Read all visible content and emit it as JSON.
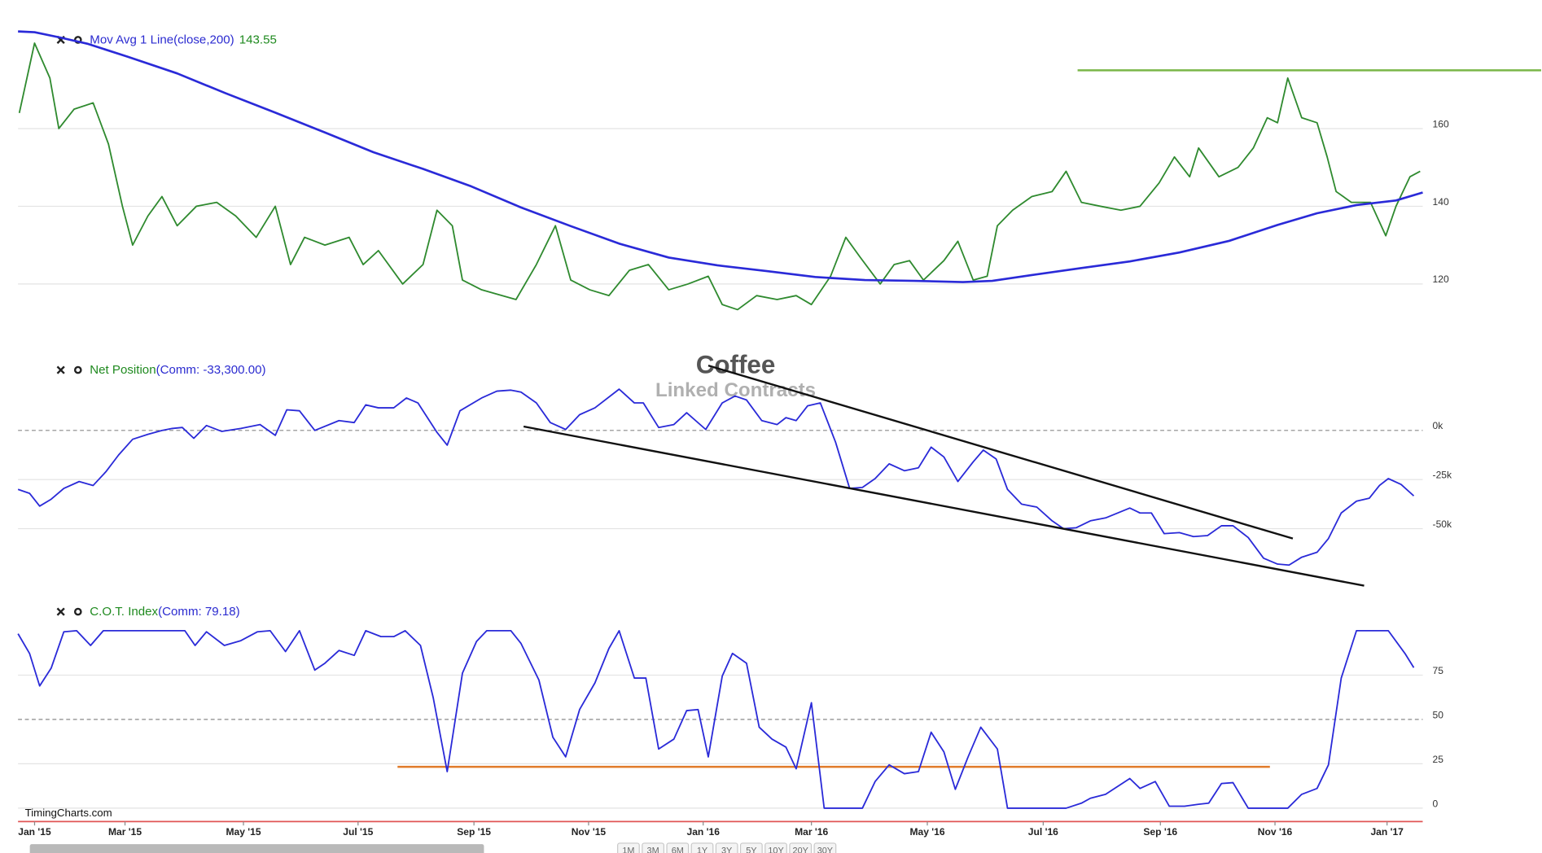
{
  "chart_data": [
    {
      "type": "line",
      "label": "Mov Avg 1 Line(close,200)",
      "label_color": "#2b2bd0",
      "label_value": 143.55,
      "label_value_color": "#1f8a1f",
      "xlim": [
        -1.3,
        109.0
      ],
      "ylim": [
        110,
        185
      ],
      "yticks": [
        120,
        140,
        160
      ],
      "grid": true,
      "series": [
        {
          "color": "#2f8a2f",
          "x": [
            -1.2,
            0,
            1.2,
            1.9,
            3.1,
            4.6,
            5.8,
            6.9,
            7.7,
            8.9,
            10.0,
            11.2,
            12.7,
            14.3,
            15.8,
            17.4,
            18.9,
            20.1,
            21.2,
            22.8,
            24.7,
            25.8,
            27.0,
            28.9,
            30.5,
            31.6,
            32.8,
            33.6,
            35.1,
            36.7,
            37.8,
            39.4,
            40.9,
            42.1,
            43.6,
            45.1,
            46.7,
            48.2,
            49.8,
            51.3,
            52.9,
            54.0,
            55.2,
            56.7,
            58.3,
            59.8,
            61.0,
            62.5,
            63.7,
            64.8,
            66.4,
            67.5,
            68.7,
            69.8,
            71.4,
            72.5,
            73.7,
            74.8,
            75.6,
            76.8,
            78.3,
            79.9,
            81.0,
            82.2,
            83.7,
            85.3,
            86.8,
            88.3,
            89.5,
            90.7,
            91.4,
            93.0,
            94.5,
            95.7,
            96.8,
            97.6,
            98.4,
            99.5,
            100.7,
            101.5,
            102.2,
            103.4,
            104.9,
            106.1,
            106.9,
            108.0,
            108.8
          ],
          "values": [
            164,
            182,
            173,
            160,
            165,
            166.6,
            156,
            140,
            130,
            137.5,
            142.5,
            135,
            140,
            141,
            137.5,
            132,
            140,
            125,
            132,
            130,
            132,
            125,
            128.6,
            120,
            125,
            139,
            135,
            121,
            118.5,
            117,
            116,
            125,
            135,
            121,
            118.5,
            117,
            123.5,
            125,
            118.5,
            120,
            122,
            114.7,
            113.4,
            117,
            116,
            117,
            114.7,
            122,
            132,
            127,
            120,
            125,
            126,
            121,
            126,
            131,
            121,
            122,
            135,
            139,
            142.5,
            143.8,
            149,
            141,
            140,
            139,
            140,
            146,
            152.7,
            147.6,
            155,
            147.6,
            150,
            155,
            162.8,
            161.5,
            173,
            162.8,
            161.5,
            152.7,
            143.8,
            141,
            141,
            132.4,
            140,
            147.6,
            149
          ]
        },
        {
          "name": "Mov Avg 1 Line(close,200)",
          "color": "#2a2ad8",
          "width": 2.2,
          "x": [
            -1.3,
            0,
            1.9,
            4.2,
            7.3,
            11.2,
            15.0,
            18.9,
            22.8,
            26.6,
            30.5,
            34.3,
            38.2,
            42.1,
            45.9,
            49.8,
            53.6,
            57.5,
            61.3,
            65.2,
            69.1,
            72.9,
            75.2,
            78.3,
            82.2,
            86.0,
            89.9,
            93.8,
            97.6,
            100.7,
            103.8,
            106.9,
            109.0
          ],
          "values": [
            185,
            184.8,
            183.5,
            181.8,
            178.5,
            174.2,
            169.1,
            164.1,
            159,
            153.9,
            149.6,
            145.1,
            139.7,
            134.9,
            130.4,
            126.8,
            124.8,
            123.3,
            121.8,
            121,
            120.8,
            120.5,
            120.8,
            122.3,
            124.1,
            125.8,
            128.1,
            131.1,
            135.2,
            138.2,
            140.3,
            141.5,
            143.55
          ]
        }
      ],
      "hlines": [
        {
          "value": 175,
          "x": [
            81.9,
            118.3
          ],
          "color": "#7ab648"
        }
      ]
    },
    {
      "type": "line",
      "label": "Net Position",
      "label_color": "#1f8a1f",
      "detail": "(Comm: -33,300.00)",
      "detail_color": "#2b2bd0",
      "watermark_title": "Coffee",
      "watermark_subtitle": "Linked Contracts",
      "xlim": [
        -1.3,
        109.0
      ],
      "ylim": [
        -80000,
        36000
      ],
      "yticks": [
        {
          "value": 0,
          "label": "0k"
        },
        {
          "value": -25000,
          "label": "-25k"
        },
        {
          "value": -50000,
          "label": "-50k"
        }
      ],
      "grid": true,
      "dashed_grid": 0,
      "series": [
        {
          "color": "#2a2ad8",
          "x": [
            -1.3,
            -0.4,
            0.4,
            1.3,
            2.3,
            3.5,
            4.6,
            5.6,
            6.6,
            7.7,
            8.9,
            10.0,
            10.8,
            11.6,
            12.5,
            13.5,
            14.7,
            16.2,
            17.7,
            18.9,
            19.8,
            20.8,
            22.0,
            23.9,
            25.1,
            26.0,
            27.0,
            28.2,
            29.2,
            30.1,
            31.6,
            32.4,
            33.4,
            35.1,
            36.3,
            37.4,
            38.2,
            39.4,
            40.5,
            41.7,
            42.8,
            44.0,
            45.9,
            47.1,
            47.8,
            49.0,
            50.2,
            51.2,
            52.7,
            54.0,
            55.0,
            55.9,
            57.1,
            58.3,
            59.0,
            59.8,
            60.7,
            61.7,
            62.9,
            64.0,
            65.0,
            66.0,
            67.1,
            68.3,
            69.4,
            70.4,
            71.4,
            72.5,
            73.7,
            74.5,
            75.5,
            76.4,
            77.5,
            78.7,
            79.9,
            80.8,
            81.8,
            82.9,
            84.1,
            86.0,
            86.8,
            87.7,
            88.7,
            89.9,
            91.0,
            92.1,
            93.2,
            94.1,
            95.3,
            96.5,
            97.6,
            98.5,
            99.5,
            100.7,
            101.6,
            102.6,
            103.8,
            104.8,
            105.6,
            106.3,
            107.3,
            108.3
          ],
          "values": [
            -30000,
            -32000,
            -38500,
            -35000,
            -29500,
            -26000,
            -28000,
            -21000,
            -12500,
            -4500,
            -2000,
            0,
            1000,
            1500,
            -4000,
            2500,
            -500,
            1000,
            3000,
            -2500,
            10500,
            10000,
            0,
            5000,
            4000,
            13000,
            11500,
            11500,
            16500,
            14000,
            -1000,
            -7500,
            10000,
            16500,
            20000,
            20500,
            19500,
            14000,
            4000,
            500,
            8000,
            11500,
            21000,
            14000,
            14000,
            1500,
            3000,
            9000,
            500,
            14000,
            17500,
            15500,
            5000,
            3000,
            6500,
            5000,
            12500,
            14000,
            -6000,
            -29500,
            -29000,
            -24500,
            -17000,
            -20500,
            -19000,
            -8500,
            -13500,
            -26000,
            -16000,
            -10000,
            -14500,
            -30000,
            -37500,
            -39000,
            -46000,
            -50000,
            -49500,
            -46000,
            -44500,
            -39500,
            -42000,
            -42000,
            -52500,
            -52000,
            -54000,
            -53500,
            -48500,
            -48500,
            -54500,
            -65000,
            -68000,
            -68500,
            -64500,
            -62000,
            -55000,
            -42000,
            -36000,
            -34500,
            -28000,
            -24500,
            -27500,
            -33300
          ]
        }
      ],
      "trendlines": [
        {
          "x": [
            52.9,
            98.8
          ],
          "y": [
            33000,
            -55000
          ],
          "color": "#111111"
        },
        {
          "x": [
            38.4,
            104.4
          ],
          "y": [
            2000,
            -79000
          ],
          "color": "#111111"
        }
      ]
    },
    {
      "type": "line",
      "label": "C.O.T. Index",
      "label_color": "#1f8a1f",
      "detail": "(Comm: 79.18)",
      "detail_color": "#2b2bd0",
      "xlim": [
        -1.3,
        109.0
      ],
      "ylim": [
        -7,
        106
      ],
      "yticks": [
        0,
        25,
        50,
        75
      ],
      "grid": true,
      "dashed_grid": 50,
      "xticks": [
        {
          "value": 0,
          "label": "Jan '15"
        },
        {
          "value": 7.1,
          "label": "Mar '15"
        },
        {
          "value": 16.4,
          "label": "May '15"
        },
        {
          "value": 25.4,
          "label": "Jul '15"
        },
        {
          "value": 34.5,
          "label": "Sep '15"
        },
        {
          "value": 43.5,
          "label": "Nov '15"
        },
        {
          "value": 52.5,
          "label": "Jan '16"
        },
        {
          "value": 61,
          "label": "Mar '16"
        },
        {
          "value": 70.1,
          "label": "May '16"
        },
        {
          "value": 79.2,
          "label": "Jul '16"
        },
        {
          "value": 88.4,
          "label": "Sep '16"
        },
        {
          "value": 97.4,
          "label": "Nov '16"
        },
        {
          "value": 106.2,
          "label": "Jan '17"
        }
      ],
      "series": [
        {
          "color": "#2a2ad8",
          "x": [
            -1.3,
            -0.4,
            0.4,
            1.3,
            2.3,
            3.3,
            4.4,
            5.4,
            6.6,
            8.1,
            9.6,
            11.8,
            12.6,
            13.5,
            14.9,
            16.2,
            17.5,
            18.5,
            19.7,
            20.8,
            22.0,
            22.8,
            23.9,
            25.1,
            26.0,
            27.2,
            28.2,
            29.1,
            30.3,
            31.3,
            32.4,
            33.6,
            34.7,
            35.5,
            37.4,
            38.2,
            39.6,
            40.7,
            41.7,
            42.8,
            44.0,
            45.1,
            45.9,
            47.1,
            48.0,
            49.0,
            50.2,
            51.2,
            52.1,
            52.9,
            54.0,
            54.8,
            55.9,
            56.9,
            57.9,
            59.0,
            59.8,
            61.0,
            62.0,
            63.3,
            65.0,
            66.0,
            67.1,
            68.3,
            69.4,
            70.4,
            71.4,
            72.3,
            73.3,
            74.3,
            75.6,
            76.4,
            78.3,
            81.0,
            82.2,
            82.9,
            84.1,
            86.0,
            86.8,
            88.0,
            89.1,
            90.3,
            91.4,
            92.2,
            93.2,
            94.1,
            95.3,
            97.2,
            98.4,
            99.5,
            100.7,
            101.6,
            102.6,
            103.8,
            104.9,
            106.3,
            107.6,
            108.3
          ],
          "values": [
            98.3,
            87.2,
            68.9,
            78.9,
            99.4,
            100,
            91.7,
            100,
            100,
            100,
            100,
            100,
            91.7,
            99.4,
            91.7,
            94.4,
            99.4,
            100,
            88.3,
            100,
            77.8,
            81.7,
            88.9,
            86.1,
            100,
            96.7,
            96.7,
            100,
            91.7,
            62.2,
            20.6,
            76.1,
            93.9,
            100,
            100,
            92.8,
            72.2,
            40,
            28.9,
            55.6,
            70.6,
            90,
            100,
            73.3,
            73.3,
            33.3,
            38.9,
            55,
            55.6,
            28.9,
            74.4,
            87.2,
            81.7,
            45.6,
            38.9,
            34.4,
            22.2,
            59.4,
            0,
            0,
            0,
            15,
            24.4,
            19.4,
            20.6,
            42.8,
            31.7,
            10.6,
            28.9,
            45.6,
            33.3,
            0,
            0,
            0,
            2.8,
            5.6,
            7.8,
            16.7,
            11.1,
            15,
            1.1,
            1.1,
            2.2,
            2.8,
            13.9,
            14.4,
            0,
            0,
            0,
            7.8,
            11.1,
            24.4,
            73.3,
            100,
            100,
            100,
            87.2,
            79.18
          ]
        }
      ],
      "hlines": [
        {
          "value": 23.3,
          "x": [
            28.5,
            97.0
          ],
          "color": "#e07b2a"
        }
      ]
    }
  ],
  "footer": "TimingCharts.com",
  "range_buttons": [
    "1M",
    "3M",
    "6M",
    "1Y",
    "3Y",
    "5Y",
    "10Y",
    "20Y",
    "30Y"
  ]
}
